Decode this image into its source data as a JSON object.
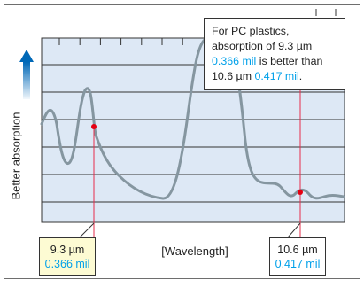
{
  "chart_data": {
    "type": "line",
    "ylabel": "Better absorption",
    "xlabel": "[Wavelength]",
    "callout": {
      "p1": "For PC plastics, absorption of 9.3 µm ",
      "v1": "0.366 mil",
      "p2": " is better than 10.6 µm ",
      "v2": "0.417 mil",
      "p3": "."
    },
    "markers": [
      {
        "um": "9.3 µm",
        "mil": "0.366 mil"
      },
      {
        "um": "10.6 µm",
        "mil": "0.417 mil"
      }
    ],
    "colors": {
      "plot_background": "#dde8f5",
      "curve": "#8596a0",
      "marker_line": "#e62d4b",
      "marker_dot": "#e60012",
      "arrow": "#0068b7",
      "highlight_text": "#00a0e9",
      "left_box_fill": "#fdfbd3"
    }
  }
}
